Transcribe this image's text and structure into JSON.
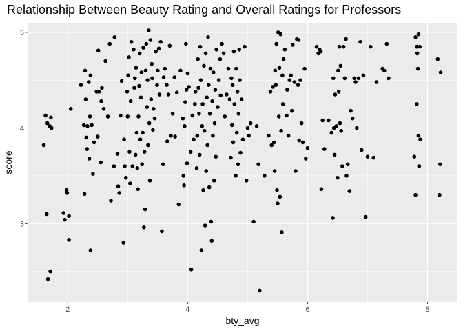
{
  "chart_data": {
    "type": "scatter",
    "title": "Relationship Between Beauty Rating and Overall Ratings for Professors",
    "xlabel": "bty_avg",
    "ylabel": "score",
    "xlim": [
      1.33,
      8.5
    ],
    "ylim": [
      2.18,
      5.1
    ],
    "xticks": [
      2,
      4,
      6,
      8
    ],
    "yticks": [
      3,
      4,
      5
    ],
    "grid": true,
    "background": "#ebebeb",
    "point_color": "#000000",
    "points": [
      [
        1.6,
        3.82
      ],
      [
        1.63,
        4.13
      ],
      [
        1.65,
        3.1
      ],
      [
        1.66,
        4.05
      ],
      [
        1.7,
        4.02
      ],
      [
        1.72,
        4.11
      ],
      [
        1.73,
        4.0
      ],
      [
        1.67,
        2.42
      ],
      [
        1.71,
        2.5
      ],
      [
        1.93,
        3.11
      ],
      [
        1.95,
        3.04
      ],
      [
        1.98,
        3.35
      ],
      [
        1.99,
        3.32
      ],
      [
        2.02,
        3.08
      ],
      [
        2.02,
        2.83
      ],
      [
        2.05,
        4.2
      ],
      [
        2.22,
        4.45
      ],
      [
        2.27,
        4.03
      ],
      [
        2.28,
        3.31
      ],
      [
        2.29,
        4.6
      ],
      [
        2.3,
        4.3
      ],
      [
        2.31,
        3.9
      ],
      [
        2.32,
        3.78
      ],
      [
        2.33,
        4.02
      ],
      [
        2.35,
        4.48
      ],
      [
        2.36,
        3.68
      ],
      [
        2.37,
        4.12
      ],
      [
        2.38,
        2.72
      ],
      [
        2.38,
        4.55
      ],
      [
        2.4,
        4.03
      ],
      [
        2.42,
        3.52
      ],
      [
        2.44,
        3.85
      ],
      [
        2.48,
        4.38
      ],
      [
        2.5,
        3.91
      ],
      [
        2.51,
        4.81
      ],
      [
        2.52,
        4.38
      ],
      [
        2.55,
        3.64
      ],
      [
        2.56,
        4.28
      ],
      [
        2.57,
        4.42
      ],
      [
        2.6,
        4.2
      ],
      [
        2.63,
        4.7
      ],
      [
        2.67,
        4.12
      ],
      [
        2.7,
        4.88
      ],
      [
        2.72,
        3.24
      ],
      [
        2.77,
        3.6
      ],
      [
        2.78,
        4.95
      ],
      [
        2.83,
        3.73
      ],
      [
        2.84,
        3.39
      ],
      [
        2.86,
        3.32
      ],
      [
        2.88,
        4.13
      ],
      [
        2.9,
        4.49
      ],
      [
        2.93,
        2.8
      ],
      [
        2.94,
        3.88
      ],
      [
        2.95,
        3.6
      ],
      [
        2.97,
        3.48
      ],
      [
        2.99,
        4.38
      ],
      [
        3.0,
        4.12
      ],
      [
        3.01,
        4.55
      ],
      [
        3.02,
        4.74
      ],
      [
        3.03,
        3.75
      ],
      [
        3.04,
        3.42
      ],
      [
        3.05,
        4.28
      ],
      [
        3.06,
        4.9
      ],
      [
        3.08,
        3.6
      ],
      [
        3.1,
        4.82
      ],
      [
        3.11,
        4.42
      ],
      [
        3.12,
        4.52
      ],
      [
        3.13,
        3.72
      ],
      [
        3.14,
        4.63
      ],
      [
        3.15,
        3.95
      ],
      [
        3.16,
        3.58
      ],
      [
        3.17,
        3.36
      ],
      [
        3.18,
        4.12
      ],
      [
        3.19,
        4.44
      ],
      [
        3.2,
        4.78
      ],
      [
        3.21,
        3.88
      ],
      [
        3.22,
        4.32
      ],
      [
        3.23,
        4.58
      ],
      [
        3.24,
        3.62
      ],
      [
        3.25,
        3.95
      ],
      [
        3.26,
        4.84
      ],
      [
        3.27,
        2.96
      ],
      [
        3.28,
        3.75
      ],
      [
        3.29,
        3.15
      ],
      [
        3.3,
        4.6
      ],
      [
        3.31,
        4.88
      ],
      [
        3.32,
        4.22
      ],
      [
        3.33,
        4.5
      ],
      [
        3.34,
        3.82
      ],
      [
        3.35,
        5.02
      ],
      [
        3.36,
        4.05
      ],
      [
        3.37,
        3.45
      ],
      [
        3.38,
        4.92
      ],
      [
        3.39,
        4.3
      ],
      [
        3.4,
        4.67
      ],
      [
        3.41,
        4.52
      ],
      [
        3.42,
        3.98
      ],
      [
        3.43,
        4.2
      ],
      [
        3.45,
        4.1
      ],
      [
        3.47,
        4.8
      ],
      [
        3.49,
        4.45
      ],
      [
        3.5,
        4.6
      ],
      [
        3.52,
        4.83
      ],
      [
        3.53,
        4.35
      ],
      [
        3.55,
        4.9
      ],
      [
        3.57,
        2.92
      ],
      [
        3.59,
        3.62
      ],
      [
        3.6,
        4.53
      ],
      [
        3.62,
        4.62
      ],
      [
        3.65,
        4.45
      ],
      [
        3.66,
        3.86
      ],
      [
        3.68,
        4.35
      ],
      [
        3.7,
        4.86
      ],
      [
        3.72,
        3.92
      ],
      [
        3.75,
        4.15
      ],
      [
        3.78,
        4.53
      ],
      [
        3.79,
        3.91
      ],
      [
        3.82,
        4.37
      ],
      [
        3.85,
        3.2
      ],
      [
        3.88,
        4.6
      ],
      [
        3.92,
        4.1
      ],
      [
        3.93,
        3.5
      ],
      [
        3.94,
        3.4
      ],
      [
        3.95,
        4.02
      ],
      [
        3.96,
        4.27
      ],
      [
        3.97,
        4.88
      ],
      [
        3.98,
        4.4
      ],
      [
        3.99,
        3.63
      ],
      [
        4.0,
        4.57
      ],
      [
        4.02,
        4.43
      ],
      [
        4.05,
        3.75
      ],
      [
        4.06,
        2.52
      ],
      [
        4.08,
        4.13
      ],
      [
        4.1,
        3.88
      ],
      [
        4.12,
        4.25
      ],
      [
        4.13,
        4.38
      ],
      [
        4.15,
        3.58
      ],
      [
        4.16,
        3.92
      ],
      [
        4.17,
        4.72
      ],
      [
        4.18,
        4.42
      ],
      [
        4.19,
        4.15
      ],
      [
        4.2,
        3.72
      ],
      [
        4.21,
        4.85
      ],
      [
        4.22,
        4.5
      ],
      [
        4.23,
        2.72
      ],
      [
        4.24,
        4.02
      ],
      [
        4.25,
        4.25
      ],
      [
        4.26,
        3.35
      ],
      [
        4.27,
        4.65
      ],
      [
        4.28,
        3.97
      ],
      [
        4.29,
        2.98
      ],
      [
        4.3,
        4.78
      ],
      [
        4.31,
        3.55
      ],
      [
        4.32,
        4.32
      ],
      [
        4.33,
        3.82
      ],
      [
        4.34,
        4.95
      ],
      [
        4.35,
        4.45
      ],
      [
        4.36,
        3.38
      ],
      [
        4.37,
        4.15
      ],
      [
        4.38,
        4.62
      ],
      [
        4.39,
        3.02
      ],
      [
        4.4,
        2.82
      ],
      [
        4.41,
        4.28
      ],
      [
        4.42,
        3.92
      ],
      [
        4.43,
        4.58
      ],
      [
        4.44,
        3.45
      ],
      [
        4.45,
        4.05
      ],
      [
        4.46,
        4.4
      ],
      [
        4.47,
        3.7
      ],
      [
        4.48,
        4.82
      ],
      [
        4.5,
        4.22
      ],
      [
        4.52,
        4.5
      ],
      [
        4.54,
        4.72
      ],
      [
        4.55,
        4.34
      ],
      [
        4.57,
        4.88
      ],
      [
        4.6,
        4.78
      ],
      [
        4.62,
        4.12
      ],
      [
        4.65,
        4.35
      ],
      [
        4.68,
        4.62
      ],
      [
        4.7,
        4.3
      ],
      [
        4.72,
        3.69
      ],
      [
        4.73,
        4.52
      ],
      [
        4.74,
        4.03
      ],
      [
        4.75,
        4.45
      ],
      [
        4.76,
        3.85
      ],
      [
        4.77,
        4.8
      ],
      [
        4.78,
        4.25
      ],
      [
        4.8,
        3.5
      ],
      [
        4.81,
        4.62
      ],
      [
        4.82,
        3.95
      ],
      [
        4.83,
        4.38
      ],
      [
        4.84,
        3.62
      ],
      [
        4.85,
        4.15
      ],
      [
        4.86,
        4.82
      ],
      [
        4.87,
        4.5
      ],
      [
        4.88,
        3.74
      ],
      [
        4.9,
        4.3
      ],
      [
        4.92,
        3.88
      ],
      [
        4.95,
        4.85
      ],
      [
        4.98,
        3.45
      ],
      [
        5.0,
        4.0
      ],
      [
        5.02,
        3.92
      ],
      [
        5.05,
        4.05
      ],
      [
        5.1,
        3.02
      ],
      [
        5.15,
        4.02
      ],
      [
        5.18,
        3.62
      ],
      [
        5.2,
        2.3
      ],
      [
        5.28,
        3.5
      ],
      [
        5.35,
        3.92
      ],
      [
        5.38,
        4.38
      ],
      [
        5.4,
        3.82
      ],
      [
        5.42,
        4.43
      ],
      [
        5.44,
        3.85
      ],
      [
        5.45,
        3.55
      ],
      [
        5.46,
        4.6
      ],
      [
        5.47,
        4.45
      ],
      [
        5.48,
        4.88
      ],
      [
        5.49,
        3.35
      ],
      [
        5.5,
        3.21
      ],
      [
        5.51,
        5.0
      ],
      [
        5.52,
        4.12
      ],
      [
        5.53,
        4.63
      ],
      [
        5.54,
        3.28
      ],
      [
        5.55,
        4.98
      ],
      [
        5.56,
        3.97
      ],
      [
        5.57,
        2.91
      ],
      [
        5.58,
        4.55
      ],
      [
        5.59,
        4.25
      ],
      [
        5.6,
        4.72
      ],
      [
        5.62,
        4.82
      ],
      [
        5.65,
        4.13
      ],
      [
        5.66,
        4.4
      ],
      [
        5.68,
        3.92
      ],
      [
        5.7,
        4.5
      ],
      [
        5.72,
        4.55
      ],
      [
        5.74,
        4.18
      ],
      [
        5.75,
        4.87
      ],
      [
        5.78,
        4.48
      ],
      [
        5.8,
        3.55
      ],
      [
        5.82,
        4.93
      ],
      [
        5.84,
        4.45
      ],
      [
        5.85,
        4.92
      ],
      [
        5.86,
        3.87
      ],
      [
        5.88,
        4.5
      ],
      [
        5.9,
        4.05
      ],
      [
        5.92,
        3.85
      ],
      [
        5.95,
        4.62
      ],
      [
        5.97,
        3.68
      ],
      [
        6.0,
        3.79
      ],
      [
        6.15,
        4.85
      ],
      [
        6.18,
        4.78
      ],
      [
        6.2,
        4.82
      ],
      [
        6.22,
        4.8
      ],
      [
        6.23,
        3.36
      ],
      [
        6.25,
        4.08
      ],
      [
        6.28,
        3.78
      ],
      [
        6.35,
        4.08
      ],
      [
        6.4,
        3.95
      ],
      [
        6.42,
        3.06
      ],
      [
        6.43,
        4.52
      ],
      [
        6.44,
        4.0
      ],
      [
        6.45,
        3.72
      ],
      [
        6.46,
        4.35
      ],
      [
        6.48,
        4.02
      ],
      [
        6.5,
        3.48
      ],
      [
        6.51,
        4.6
      ],
      [
        6.52,
        4.38
      ],
      [
        6.53,
        4.85
      ],
      [
        6.54,
        4.05
      ],
      [
        6.55,
        4.65
      ],
      [
        6.56,
        3.97
      ],
      [
        6.58,
        3.6
      ],
      [
        6.6,
        4.85
      ],
      [
        6.62,
        4.52
      ],
      [
        6.64,
        4.93
      ],
      [
        6.65,
        3.5
      ],
      [
        6.67,
        3.62
      ],
      [
        6.7,
        3.34
      ],
      [
        6.72,
        4.18
      ],
      [
        6.75,
        4.1
      ],
      [
        6.78,
        4.52
      ],
      [
        6.8,
        4.48
      ],
      [
        6.82,
        4.0
      ],
      [
        6.85,
        4.52
      ],
      [
        6.88,
        4.9
      ],
      [
        6.9,
        3.77
      ],
      [
        6.93,
        4.55
      ],
      [
        6.97,
        3.07
      ],
      [
        7.0,
        3.7
      ],
      [
        7.05,
        4.85
      ],
      [
        7.1,
        3.69
      ],
      [
        7.15,
        4.48
      ],
      [
        7.25,
        4.62
      ],
      [
        7.28,
        4.6
      ],
      [
        7.32,
        4.88
      ],
      [
        7.35,
        4.52
      ],
      [
        7.78,
        3.7
      ],
      [
        7.8,
        4.95
      ],
      [
        7.8,
        3.3
      ],
      [
        7.82,
        4.85
      ],
      [
        7.82,
        4.25
      ],
      [
        7.83,
        4.78
      ],
      [
        7.84,
        4.62
      ],
      [
        7.85,
        3.92
      ],
      [
        7.85,
        4.98
      ],
      [
        7.86,
        3.6
      ],
      [
        7.87,
        4.85
      ],
      [
        7.88,
        3.88
      ],
      [
        8.17,
        4.72
      ],
      [
        8.2,
        3.3
      ],
      [
        8.21,
        3.62
      ],
      [
        8.22,
        4.58
      ]
    ]
  }
}
